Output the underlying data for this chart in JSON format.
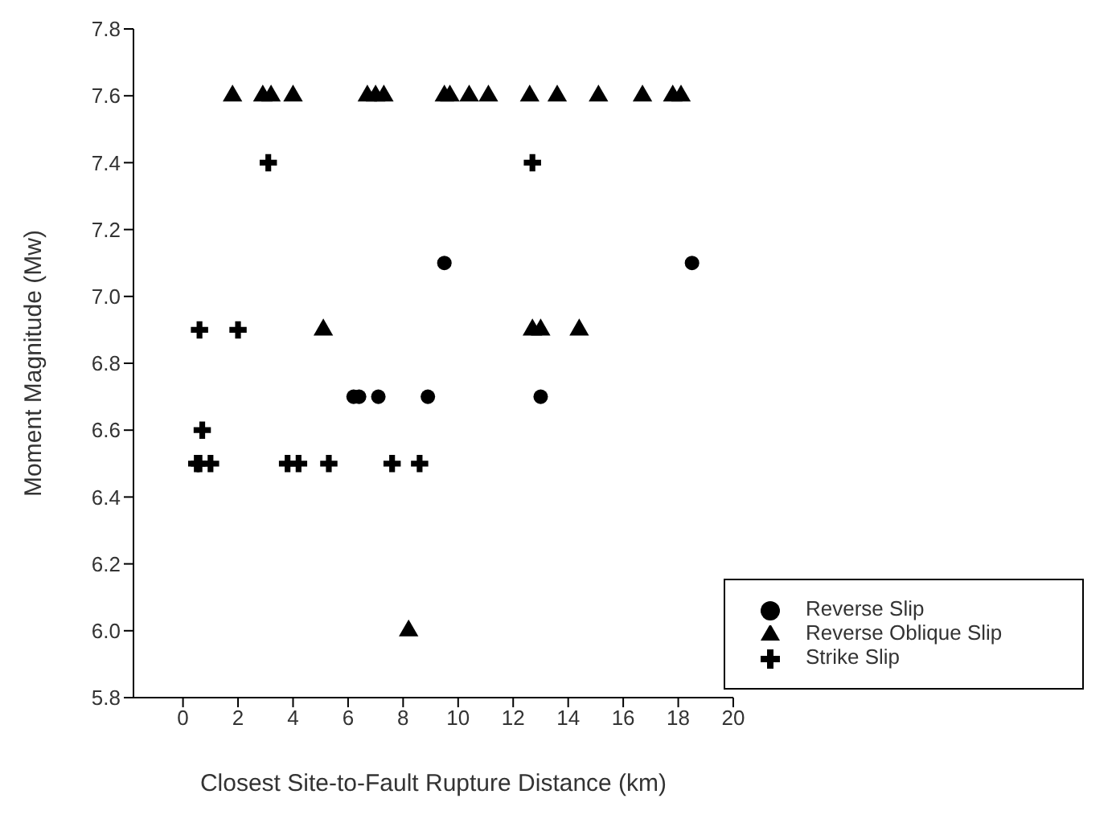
{
  "chart_data": {
    "type": "scatter",
    "xlabel": "Closest Site-to-Fault Rupture Distance (km)",
    "ylabel": "Moment Magnitude (Mw)",
    "xlim": [
      -1.8,
      20
    ],
    "xticks": [
      0,
      2,
      4,
      6,
      8,
      10,
      12,
      14,
      16,
      18,
      20
    ],
    "ylim": [
      5.8,
      7.8
    ],
    "yticks": [
      5.8,
      {
        "value": 6,
        "label": "6.0"
      },
      6.2,
      6.4,
      6.6,
      6.8,
      {
        "value": 7,
        "label": "7.0"
      },
      7.2,
      7.4,
      7.6,
      7.8
    ],
    "grid": false,
    "legend": "bottom right",
    "series": [
      {
        "name": "Reverse Slip",
        "color": "#000000",
        "marker": "circle",
        "x": [
          9.5,
          18.5,
          6.2,
          6.4,
          7.1,
          8.9,
          13.0
        ],
        "values": [
          7.1,
          7.1,
          6.7,
          6.7,
          6.7,
          6.7,
          6.7
        ]
      },
      {
        "name": "Reverse Oblique Slip",
        "color": "#000000",
        "marker": "triangle",
        "x": [
          1.8,
          2.9,
          3.2,
          4.0,
          6.7,
          7.0,
          7.3,
          9.5,
          9.7,
          10.4,
          11.1,
          12.6,
          13.6,
          15.1,
          16.7,
          17.8,
          18.1,
          5.1,
          12.7,
          13.0,
          14.4,
          8.2
        ],
        "values": [
          7.6,
          7.6,
          7.6,
          7.6,
          7.6,
          7.6,
          7.6,
          7.6,
          7.6,
          7.6,
          7.6,
          7.6,
          7.6,
          7.6,
          7.6,
          7.6,
          7.6,
          6.9,
          6.9,
          6.9,
          6.9,
          6.0
        ]
      },
      {
        "name": "Strike Slip",
        "color": "#000000",
        "marker": "cross",
        "x": [
          3.1,
          12.7,
          0.6,
          2.0,
          0.7,
          0.5,
          0.6,
          1.0,
          3.8,
          4.2,
          5.3,
          7.6,
          8.6
        ],
        "values": [
          7.4,
          7.4,
          6.9,
          6.9,
          6.6,
          6.5,
          6.5,
          6.5,
          6.5,
          6.5,
          6.5,
          6.5,
          6.5
        ]
      }
    ]
  }
}
